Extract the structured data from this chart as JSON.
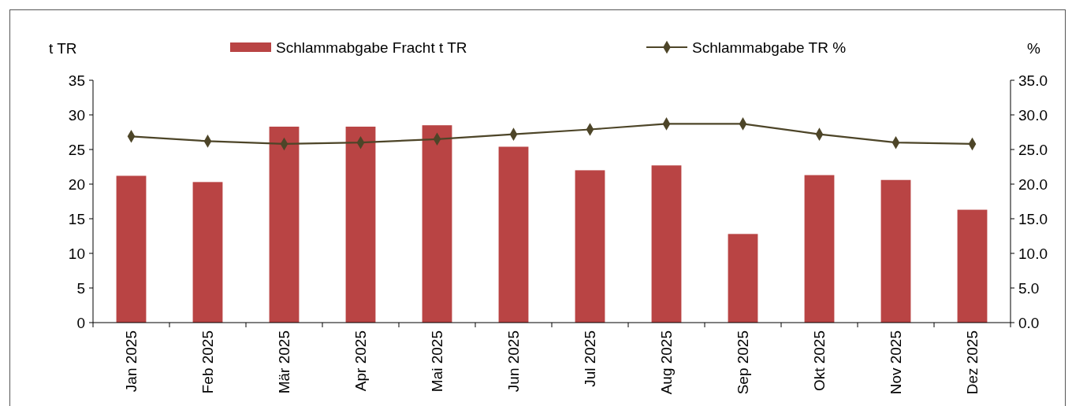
{
  "chart_data": {
    "type": "bar",
    "categories": [
      "Jan 2025",
      "Feb 2025",
      "Mär 2025",
      "Apr 2025",
      "Mai 2025",
      "Jun 2025",
      "Jul 2025",
      "Aug 2025",
      "Sep 2025",
      "Okt 2025",
      "Nov 2025",
      "Dez 2025"
    ],
    "series": [
      {
        "name": "Schlammabgabe Fracht t TR",
        "color": "#b94444",
        "values": [
          21.2,
          20.3,
          28.3,
          28.3,
          28.5,
          25.4,
          22.0,
          22.7,
          12.8,
          21.3,
          20.6,
          16.3
        ]
      },
      {
        "name": "Schlammabgabe TR %",
        "type": "line",
        "axis": "y2",
        "color": "#4d4528",
        "marker": "diamond",
        "values": [
          26.9,
          26.2,
          25.8,
          26.0,
          26.5,
          27.2,
          27.9,
          28.7,
          28.7,
          27.2,
          26.0,
          25.8
        ]
      }
    ],
    "ylabel": "t TR",
    "y2label": "%",
    "ylim": [
      0,
      35
    ],
    "yticks": [
      0,
      5,
      10,
      15,
      20,
      25,
      30,
      35
    ],
    "y2lim": [
      0,
      35
    ],
    "y2ticks": [
      {
        "value": 0,
        "label": "0.0"
      },
      {
        "value": 5,
        "label": "5.0"
      },
      {
        "value": 10,
        "label": "10.0"
      },
      {
        "value": 15,
        "label": "15.0"
      },
      {
        "value": 20,
        "label": "20.0"
      },
      {
        "value": 25,
        "label": "25.0"
      },
      {
        "value": 30,
        "label": "30.0"
      },
      {
        "value": 35,
        "label": "35.0"
      }
    ],
    "legend": "top",
    "grid": false
  }
}
